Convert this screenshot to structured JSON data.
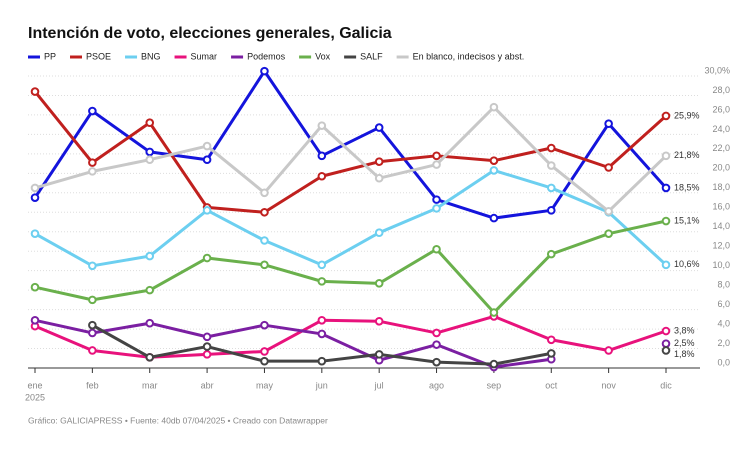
{
  "chart_data": {
    "type": "line",
    "title": "Intención de voto, elecciones generales, Galicia",
    "footer": "Gráfico: GALICIAPRESS • Fuente: 40db 07/04/2025 • Creado con Datawrapper",
    "categories": [
      "ene",
      "feb",
      "mar",
      "abr",
      "may",
      "jun",
      "jul",
      "ago",
      "sep",
      "oct",
      "nov",
      "dic"
    ],
    "x_year": "2025",
    "ylim": [
      0,
      30
    ],
    "yticks": [
      {
        "value": 0,
        "label": "0,0"
      },
      {
        "value": 2,
        "label": "2,0"
      },
      {
        "value": 4,
        "label": "4,0"
      },
      {
        "value": 6,
        "label": "6,0"
      },
      {
        "value": 8,
        "label": "8,0"
      },
      {
        "value": 10,
        "label": "10,0"
      },
      {
        "value": 12,
        "label": "12,0"
      },
      {
        "value": 14,
        "label": "14,0"
      },
      {
        "value": 16,
        "label": "16,0"
      },
      {
        "value": 18,
        "label": "18,0"
      },
      {
        "value": 20,
        "label": "20,0"
      },
      {
        "value": 22,
        "label": "22,0"
      },
      {
        "value": 24,
        "label": "24,0"
      },
      {
        "value": 26,
        "label": "26,0"
      },
      {
        "value": 28,
        "label": "28,0"
      },
      {
        "value": 30,
        "label": "30,0%"
      }
    ],
    "grid": true,
    "legend": "top",
    "series": [
      {
        "name": "PP",
        "color": "#1414dc",
        "values": [
          17.5,
          26.4,
          22.2,
          21.4,
          30.5,
          21.8,
          24.7,
          17.3,
          15.4,
          16.2,
          25.1,
          18.5
        ],
        "value_labels": [
          null,
          null,
          null,
          null,
          null,
          null,
          null,
          null,
          null,
          null,
          null,
          "18,5%"
        ]
      },
      {
        "name": "PSOE",
        "color": "#c0201e",
        "values": [
          28.4,
          21.1,
          25.2,
          16.5,
          16.0,
          19.7,
          21.2,
          21.8,
          21.3,
          22.6,
          20.6,
          25.9
        ],
        "value_labels": [
          null,
          null,
          null,
          null,
          null,
          null,
          null,
          null,
          null,
          null,
          null,
          "25,9%"
        ]
      },
      {
        "name": "BNG",
        "color": "#6ccff0",
        "values": [
          13.8,
          10.5,
          11.5,
          16.2,
          13.1,
          10.6,
          13.9,
          16.4,
          20.3,
          18.5,
          16.0,
          10.6
        ],
        "value_labels": [
          null,
          null,
          null,
          null,
          null,
          null,
          null,
          null,
          null,
          null,
          null,
          "10,6%"
        ]
      },
      {
        "name": "Sumar",
        "color": "#e8127c",
        "values": [
          4.3,
          1.8,
          1.1,
          1.4,
          1.7,
          4.9,
          4.8,
          3.6,
          5.3,
          2.9,
          1.8,
          3.8
        ],
        "value_labels": [
          null,
          null,
          null,
          null,
          null,
          null,
          null,
          null,
          null,
          null,
          null,
          "3,8%"
        ]
      },
      {
        "name": "Podemos",
        "color": "#7b1fa2",
        "values": [
          4.9,
          3.6,
          4.6,
          3.2,
          4.4,
          3.5,
          0.8,
          2.4,
          0.1,
          0.9,
          null,
          2.5
        ],
        "value_labels": [
          null,
          null,
          null,
          null,
          null,
          null,
          null,
          null,
          null,
          null,
          null,
          "2,5%"
        ]
      },
      {
        "name": "Vox",
        "color": "#6ab04c",
        "values": [
          8.3,
          7.0,
          8.0,
          11.3,
          10.6,
          8.9,
          8.7,
          12.2,
          5.7,
          11.7,
          13.8,
          15.1
        ],
        "value_labels": [
          null,
          null,
          null,
          null,
          null,
          null,
          null,
          null,
          null,
          null,
          null,
          "15,1%"
        ]
      },
      {
        "name": "SALF",
        "color": "#444444",
        "values": [
          null,
          4.4,
          1.1,
          2.2,
          0.7,
          0.7,
          1.4,
          0.6,
          0.4,
          1.5,
          null,
          1.8
        ],
        "value_labels": [
          null,
          null,
          null,
          null,
          null,
          null,
          null,
          null,
          null,
          null,
          null,
          "1,8%"
        ]
      },
      {
        "name": "En blanco, indecisos y abst.",
        "color": "#c8c8c8",
        "values": [
          18.5,
          20.2,
          21.4,
          22.8,
          18.0,
          24.9,
          19.5,
          20.9,
          26.8,
          20.8,
          16.1,
          21.8
        ],
        "value_labels": [
          null,
          null,
          null,
          null,
          null,
          null,
          null,
          null,
          null,
          null,
          null,
          "21,8%"
        ]
      }
    ]
  }
}
